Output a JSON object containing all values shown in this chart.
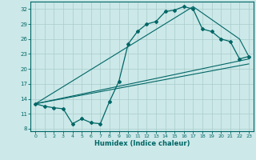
{
  "title": "",
  "xlabel": "Humidex (Indice chaleur)",
  "background_color": "#cce8e8",
  "grid_color": "#aacccc",
  "line_color": "#006666",
  "xlim": [
    -0.5,
    23.5
  ],
  "ylim": [
    7.5,
    33.5
  ],
  "yticks": [
    8,
    11,
    14,
    17,
    20,
    23,
    26,
    29,
    32
  ],
  "xticks": [
    0,
    1,
    2,
    3,
    4,
    5,
    6,
    7,
    8,
    9,
    10,
    11,
    12,
    13,
    14,
    15,
    16,
    17,
    18,
    19,
    20,
    21,
    22,
    23
  ],
  "line1_x": [
    0,
    1,
    2,
    3,
    4,
    5,
    6,
    7,
    8,
    9,
    10,
    11,
    12,
    13,
    14,
    15,
    16,
    17,
    18,
    19,
    20,
    21,
    22,
    23
  ],
  "line1_y": [
    13,
    12.5,
    12.2,
    12,
    9,
    10,
    9.2,
    9,
    13.5,
    17.5,
    25,
    27.5,
    29,
    29.5,
    31.5,
    31.8,
    32.5,
    32,
    28,
    27.5,
    26,
    25.5,
    22,
    22.5
  ],
  "line2_x": [
    0,
    17,
    22,
    23
  ],
  "line2_y": [
    13,
    32.5,
    26,
    22.5
  ],
  "line3_x": [
    0,
    23
  ],
  "line3_y": [
    13,
    22
  ],
  "line4_x": [
    0,
    23
  ],
  "line4_y": [
    13,
    21
  ]
}
